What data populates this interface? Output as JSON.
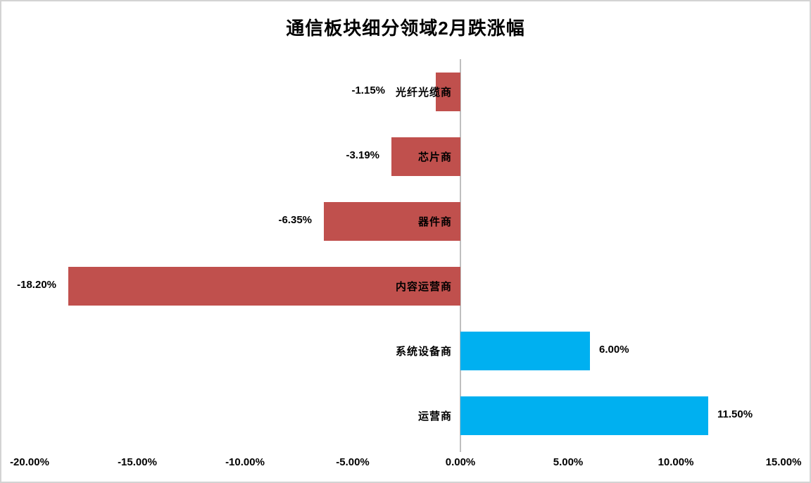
{
  "chart_data": {
    "type": "bar",
    "orientation": "horizontal",
    "title": "通信板块细分领域2月跌涨幅",
    "categories": [
      "光纤光缆商",
      "芯片商",
      "器件商",
      "内容运营商",
      "系统设备商",
      "运营商"
    ],
    "values": [
      -1.15,
      -3.19,
      -6.35,
      -18.2,
      6.0,
      11.5
    ],
    "value_labels": [
      "-1.15%",
      "-3.19%",
      "-6.35%",
      "-18.20%",
      "6.00%",
      "11.50%"
    ],
    "x_tick_labels": [
      "-20.00%",
      "-15.00%",
      "-10.00%",
      "-5.00%",
      "0.00%",
      "5.00%",
      "10.00%",
      "15.00%"
    ],
    "x_tick_values": [
      -20,
      -15,
      -10,
      -5,
      0,
      5,
      10,
      15
    ],
    "xlim": [
      -20,
      15
    ],
    "grid": false,
    "legend": "none",
    "label_position": "outside-end",
    "colors": {
      "negative_bar": "#C0504D",
      "positive_bar": "#00B0F0",
      "axis_line": "#BFBFBF",
      "frame_border": "#D3D3D3",
      "text": "#000000"
    }
  }
}
